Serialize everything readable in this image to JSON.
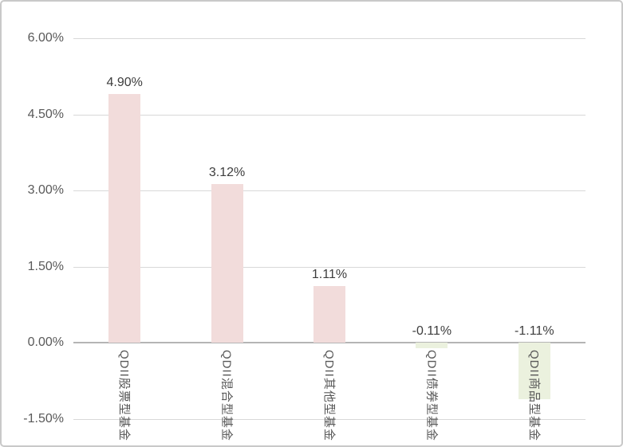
{
  "chart_data": {
    "type": "bar",
    "title": "",
    "xlabel": "",
    "ylabel": "",
    "categories": [
      "QDII股票型基金",
      "QDII混合型基金",
      "QDII其他型基金",
      "QDII债券型基金",
      "QDII商品型基金"
    ],
    "values": [
      4.9,
      3.12,
      1.11,
      -0.11,
      -1.11
    ],
    "value_labels": [
      "4.90%",
      "3.12%",
      "1.11%",
      "-0.11%",
      "-1.11%"
    ],
    "yticks": [
      {
        "value": 6.0,
        "label": "6.00%"
      },
      {
        "value": 4.5,
        "label": "4.50%"
      },
      {
        "value": 3.0,
        "label": "3.00%"
      },
      {
        "value": 1.5,
        "label": "1.50%"
      },
      {
        "value": 0.0,
        "label": "0.00%"
      },
      {
        "value": -1.5,
        "label": "-1.50%"
      }
    ],
    "ylim": [
      -1.5,
      6.0
    ],
    "grid": true,
    "legend": false,
    "colors": {
      "positive_bar": "#f2dcdb",
      "negative_bar": "#ebf1de",
      "gridline": "#d8d8d8",
      "zero_axis": "#b5b5b5",
      "tick_text": "#595959",
      "value_text": "#3d3d3d",
      "frame_border": "#c9c9c9",
      "background": "#ffffff"
    }
  }
}
